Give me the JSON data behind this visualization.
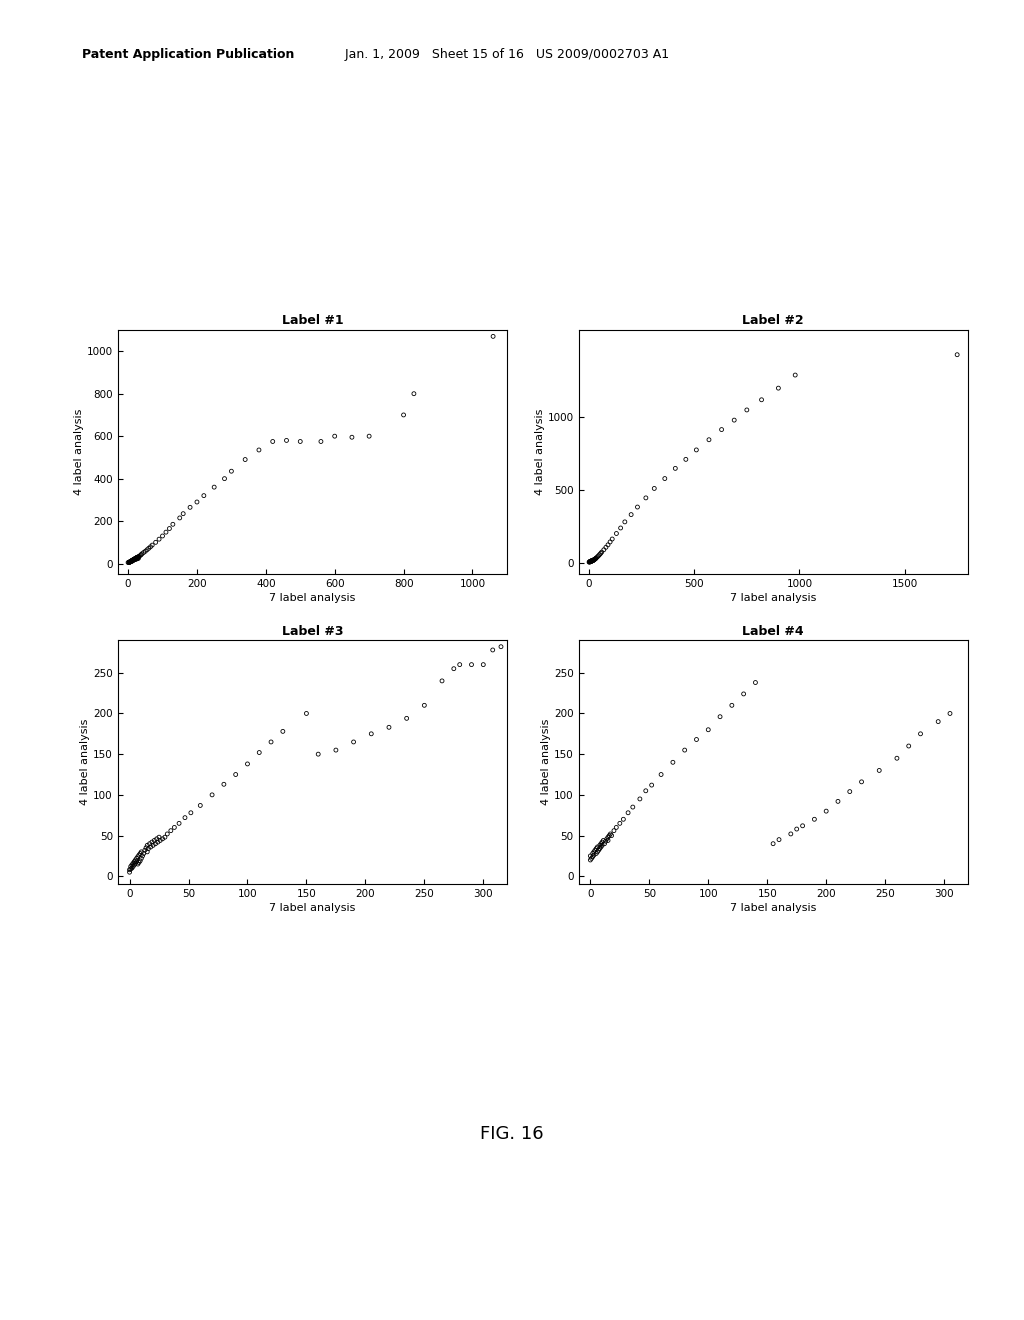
{
  "header_line1_bold": "Patent Application Publication",
  "header_line1_normal": "   Jan. 1, 2009   Sheet 15 of 16   US 2009/0002703 A1",
  "fig_label": "FIG. 16",
  "background_color": "#ffffff",
  "plots": [
    {
      "title": "Label #1",
      "xlabel": "7 label analysis",
      "ylabel": "4 label analysis",
      "xlim": [
        -30,
        1100
      ],
      "ylim": [
        -50,
        1100
      ],
      "xticks": [
        0,
        200,
        400,
        600,
        800,
        1000
      ],
      "yticks": [
        0,
        200,
        400,
        600,
        800,
        1000
      ],
      "x": [
        0,
        2,
        3,
        4,
        4,
        5,
        5,
        6,
        6,
        7,
        7,
        8,
        8,
        9,
        9,
        10,
        10,
        11,
        11,
        12,
        12,
        13,
        13,
        14,
        14,
        15,
        15,
        16,
        16,
        17,
        18,
        18,
        19,
        20,
        20,
        21,
        22,
        22,
        23,
        24,
        25,
        25,
        26,
        27,
        28,
        29,
        30,
        30,
        32,
        35,
        38,
        40,
        45,
        50,
        55,
        60,
        65,
        70,
        80,
        90,
        100,
        110,
        120,
        130,
        150,
        160,
        180,
        200,
        220,
        250,
        280,
        300,
        340,
        380,
        420,
        460,
        500,
        560,
        600,
        650,
        700,
        800,
        830,
        1060
      ],
      "y": [
        5,
        5,
        6,
        7,
        6,
        8,
        7,
        9,
        8,
        10,
        9,
        11,
        10,
        12,
        11,
        13,
        12,
        14,
        11,
        15,
        14,
        16,
        13,
        17,
        15,
        18,
        16,
        19,
        17,
        20,
        21,
        18,
        22,
        23,
        19,
        24,
        25,
        20,
        26,
        27,
        28,
        22,
        29,
        30,
        24,
        31,
        32,
        25,
        34,
        38,
        42,
        46,
        52,
        58,
        65,
        72,
        79,
        87,
        100,
        115,
        130,
        148,
        165,
        185,
        215,
        235,
        265,
        290,
        320,
        360,
        400,
        435,
        490,
        535,
        575,
        580,
        575,
        575,
        600,
        595,
        600,
        700,
        800,
        1070
      ]
    },
    {
      "title": "Label #2",
      "xlabel": "7 label analysis",
      "ylabel": "4 label analysis",
      "xlim": [
        -50,
        1800
      ],
      "ylim": [
        -80,
        1600
      ],
      "xticks": [
        0,
        500,
        1000,
        1500
      ],
      "yticks": [
        0,
        500,
        1000
      ],
      "x": [
        0,
        2,
        3,
        4,
        5,
        5,
        6,
        7,
        7,
        8,
        9,
        9,
        10,
        11,
        12,
        12,
        13,
        14,
        15,
        15,
        16,
        17,
        18,
        19,
        20,
        20,
        22,
        24,
        26,
        28,
        30,
        32,
        35,
        40,
        45,
        50,
        55,
        60,
        70,
        80,
        90,
        100,
        110,
        130,
        150,
        170,
        200,
        230,
        270,
        310,
        360,
        410,
        460,
        510,
        570,
        630,
        690,
        750,
        820,
        900,
        980,
        1750
      ],
      "y": [
        3,
        4,
        5,
        6,
        5,
        7,
        6,
        8,
        7,
        9,
        8,
        10,
        9,
        11,
        10,
        12,
        11,
        13,
        12,
        14,
        13,
        15,
        14,
        16,
        15,
        17,
        18,
        20,
        22,
        24,
        26,
        29,
        33,
        40,
        47,
        55,
        63,
        72,
        88,
        105,
        122,
        142,
        162,
        200,
        238,
        280,
        330,
        382,
        445,
        510,
        578,
        648,
        710,
        775,
        845,
        915,
        980,
        1050,
        1120,
        1200,
        1290,
        1430
      ]
    },
    {
      "title": "Label #3",
      "xlabel": "7 label analysis",
      "ylabel": "4 label analysis",
      "xlim": [
        -10,
        320
      ],
      "ylim": [
        -10,
        290
      ],
      "xticks": [
        0,
        50,
        100,
        150,
        200,
        250,
        300
      ],
      "yticks": [
        0,
        50,
        100,
        150,
        200,
        250
      ],
      "x": [
        0,
        0,
        1,
        1,
        2,
        2,
        3,
        3,
        4,
        4,
        5,
        5,
        6,
        6,
        7,
        7,
        8,
        8,
        9,
        9,
        10,
        10,
        11,
        12,
        13,
        14,
        15,
        15,
        16,
        17,
        18,
        19,
        20,
        21,
        22,
        23,
        24,
        25,
        26,
        28,
        30,
        32,
        35,
        38,
        42,
        47,
        52,
        60,
        70,
        80,
        90,
        100,
        110,
        120,
        130,
        150,
        160,
        175,
        190,
        205,
        220,
        235,
        250,
        265,
        275,
        280,
        290,
        300,
        308,
        315
      ],
      "y": [
        5,
        8,
        9,
        12,
        10,
        14,
        12,
        16,
        14,
        18,
        16,
        20,
        18,
        22,
        15,
        24,
        17,
        26,
        19,
        28,
        22,
        30,
        25,
        28,
        32,
        35,
        30,
        38,
        34,
        40,
        36,
        42,
        38,
        44,
        40,
        46,
        42,
        48,
        44,
        46,
        48,
        52,
        56,
        60,
        65,
        72,
        78,
        87,
        100,
        113,
        125,
        138,
        152,
        165,
        178,
        200,
        150,
        155,
        165,
        175,
        183,
        194,
        210,
        240,
        255,
        260,
        260,
        260,
        278,
        282
      ]
    },
    {
      "title": "Label #4",
      "xlabel": "7 label analysis",
      "ylabel": "4 label analysis",
      "xlim": [
        -10,
        320
      ],
      "ylim": [
        -10,
        290
      ],
      "xticks": [
        0,
        50,
        100,
        150,
        200,
        250,
        300
      ],
      "yticks": [
        0,
        50,
        100,
        150,
        200,
        250
      ],
      "x": [
        0,
        0,
        1,
        2,
        2,
        3,
        3,
        4,
        5,
        5,
        6,
        6,
        7,
        8,
        8,
        9,
        9,
        10,
        10,
        11,
        12,
        13,
        14,
        15,
        15,
        16,
        17,
        18,
        20,
        22,
        25,
        28,
        32,
        36,
        42,
        47,
        52,
        60,
        70,
        80,
        90,
        100,
        110,
        120,
        130,
        140,
        155,
        160,
        170,
        175,
        180,
        190,
        200,
        210,
        220,
        230,
        245,
        260,
        270,
        280,
        295,
        305
      ],
      "y": [
        20,
        25,
        22,
        24,
        28,
        26,
        30,
        32,
        28,
        34,
        30,
        36,
        32,
        38,
        34,
        40,
        36,
        42,
        38,
        44,
        40,
        43,
        46,
        48,
        44,
        50,
        52,
        50,
        56,
        60,
        65,
        70,
        78,
        85,
        95,
        105,
        112,
        125,
        140,
        155,
        168,
        180,
        196,
        210,
        224,
        238,
        40,
        45,
        52,
        58,
        62,
        70,
        80,
        92,
        104,
        116,
        130,
        145,
        160,
        175,
        190,
        200
      ]
    }
  ]
}
